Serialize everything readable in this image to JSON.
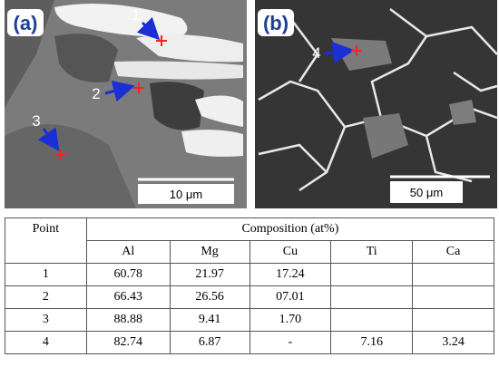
{
  "panels": [
    {
      "label": "(a)",
      "points": [
        "1",
        "2",
        "3"
      ],
      "scale_bar": "10 μm"
    },
    {
      "label": "(b)",
      "points": [
        "4"
      ],
      "scale_bar": "50 μm"
    }
  ],
  "table": {
    "header": {
      "point": "Point",
      "composition": "Composition (at%)"
    },
    "columns": [
      "Al",
      "Mg",
      "Cu",
      "Ti",
      "Ca"
    ],
    "rows": [
      [
        "1",
        "60.78",
        "21.97",
        "17.24"
      ],
      [
        "2",
        "66.43",
        "26.56",
        "07.01"
      ],
      [
        "3",
        "88.88",
        "9.41",
        "1.70"
      ],
      [
        "4",
        "82.74",
        "6.87",
        "-",
        "7.16",
        "3.24"
      ]
    ]
  }
}
